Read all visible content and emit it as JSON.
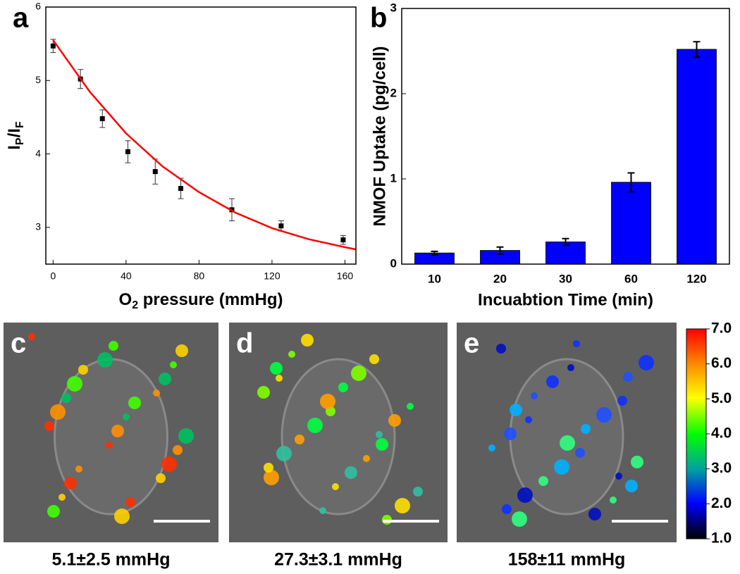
{
  "chart_data": [
    {
      "type": "scatter",
      "panel_label": "a",
      "x_label": [
        {
          "text": "O"
        },
        {
          "text": "2",
          "sub": true
        },
        {
          "text": " pressure (mmHg)"
        }
      ],
      "y_label": [
        {
          "text": "I"
        },
        {
          "text": "P",
          "sub": true
        },
        {
          "text": "/I"
        },
        {
          "text": "F",
          "sub": true
        }
      ],
      "xlim": [
        -4,
        166
      ],
      "ylim": [
        2.5,
        6
      ],
      "xticks": [
        0,
        40,
        80,
        120,
        160
      ],
      "yticks": [
        3,
        4,
        5,
        6
      ],
      "series": [
        {
          "color": "#000000",
          "x": [
            0,
            15,
            27,
            41,
            56,
            70,
            98,
            125,
            159
          ],
          "values": [
            5.47,
            5.02,
            4.48,
            4.03,
            3.76,
            3.53,
            3.24,
            3.02,
            2.83
          ],
          "errors": [
            0.09,
            0.13,
            0.12,
            0.15,
            0.17,
            0.14,
            0.15,
            0.07,
            0.06
          ]
        },
        {
          "type": "line",
          "color": "#ff0000",
          "x": [
            0,
            20,
            40,
            60,
            80,
            100,
            120,
            140,
            160,
            166
          ],
          "values": [
            5.55,
            4.85,
            4.28,
            3.83,
            3.48,
            3.2,
            2.99,
            2.84,
            2.73,
            2.7
          ]
        }
      ]
    },
    {
      "type": "bar",
      "panel_label": "b",
      "x_label": "Incuabtion Time (min)",
      "y_label": "NMOF Uptake (pg/cell)",
      "categories": [
        "10",
        "20",
        "30",
        "60",
        "120"
      ],
      "values": [
        0.13,
        0.16,
        0.26,
        0.96,
        2.52
      ],
      "errors": [
        0.02,
        0.04,
        0.04,
        0.11,
        0.09
      ],
      "color": "#0000ff",
      "ylim": [
        0,
        3
      ],
      "yticks": [
        0,
        1,
        2,
        3
      ]
    }
  ],
  "micrographs": [
    {
      "label": "c",
      "caption": "5.1±2.5 mmHg"
    },
    {
      "label": "d",
      "caption": "27.3±3.1 mmHg"
    },
    {
      "label": "e",
      "caption": "158±11 mmHg"
    }
  ],
  "colorbar": {
    "lim": [
      1,
      7
    ],
    "ticks": [
      {
        "value": 7,
        "label": "7.0"
      },
      {
        "value": 6,
        "label": "6.0"
      },
      {
        "value": 5,
        "label": "5.0"
      },
      {
        "value": 4,
        "label": "4.0"
      },
      {
        "value": 3,
        "label": "3.0"
      },
      {
        "value": 2,
        "label": "2.0"
      },
      {
        "value": 1,
        "label": "1.0"
      }
    ]
  }
}
